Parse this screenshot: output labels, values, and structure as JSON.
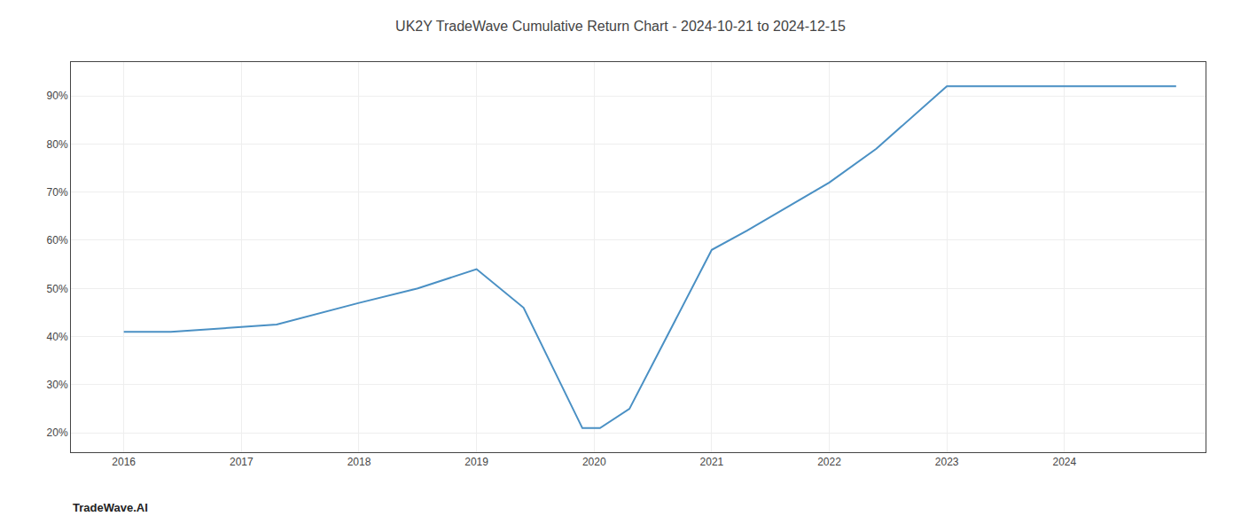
{
  "chart_data": {
    "type": "line",
    "title": "UK2Y TradeWave Cumulative Return Chart - 2024-10-21 to 2024-12-15",
    "x": [
      2016,
      2016.4,
      2017,
      2017.3,
      2018,
      2018.5,
      2019,
      2019.4,
      2019.9,
      2020.05,
      2020.3,
      2021,
      2021.3,
      2022,
      2022.4,
      2023,
      2023.5,
      2024,
      2024.95
    ],
    "values": [
      41,
      41,
      42,
      42.5,
      47,
      50,
      54,
      46,
      21,
      21,
      25,
      58,
      62,
      72,
      79,
      92,
      92,
      92,
      92
    ],
    "color": "#4a90c4",
    "xlim": [
      2015.55,
      2025.2
    ],
    "xticks": [
      2016,
      2017,
      2018,
      2019,
      2020,
      2021,
      2022,
      2023,
      2024
    ],
    "ylim": [
      16,
      97
    ],
    "yticks": [
      {
        "value": 20,
        "label": "20%"
      },
      {
        "value": 30,
        "label": "30%"
      },
      {
        "value": 40,
        "label": "40%"
      },
      {
        "value": 50,
        "label": "50%"
      },
      {
        "value": 60,
        "label": "60%"
      },
      {
        "value": 70,
        "label": "70%"
      },
      {
        "value": 80,
        "label": "80%"
      },
      {
        "value": 90,
        "label": "90%"
      }
    ],
    "annotations": [
      {
        "text": "TradeWave.AI"
      }
    ],
    "grid": true
  }
}
